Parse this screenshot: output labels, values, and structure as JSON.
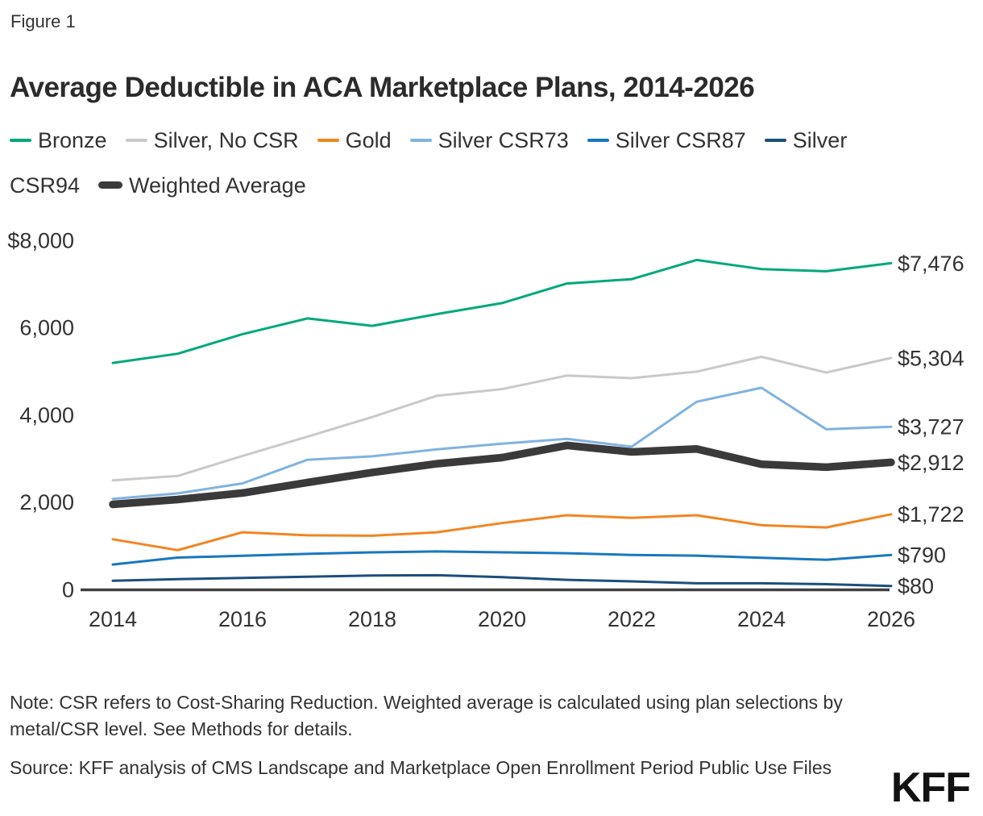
{
  "figure_label": "Figure 1",
  "title": "Average Deductible in ACA Marketplace Plans, 2014-2026",
  "legend": {
    "items": [
      "Bronze",
      "Silver, No CSR",
      "Gold",
      "Silver CSR73",
      "Silver CSR87",
      "Silver CSR94",
      "Weighted Average"
    ]
  },
  "chart_data": {
    "type": "line",
    "title": "Average Deductible in ACA Marketplace Plans, 2014-2026",
    "x": [
      2014,
      2015,
      2016,
      2017,
      2018,
      2019,
      2020,
      2021,
      2022,
      2023,
      2024,
      2025,
      2026
    ],
    "x_ticks": [
      2014,
      2016,
      2018,
      2020,
      2022,
      2024,
      2026
    ],
    "ylim": [
      0,
      8000
    ],
    "grid": false,
    "legend_position": "top",
    "y_ticks": [
      {
        "value": 8000,
        "label": "$8,000"
      },
      {
        "value": 6000,
        "label": "6,000"
      },
      {
        "value": 4000,
        "label": "4,000"
      },
      {
        "value": 2000,
        "label": "2,000"
      },
      {
        "value": 0,
        "label": "0"
      }
    ],
    "series": [
      {
        "name": "Silver, No CSR",
        "color": "#C9C9C9",
        "width": 3,
        "values": [
          2500,
          2600,
          3060,
          3500,
          3950,
          4440,
          4590,
          4900,
          4840,
          4990,
          5330,
          4970,
          5304
        ],
        "end_label": "$5,304"
      },
      {
        "name": "Bronze",
        "color": "#00A87C",
        "width": 3,
        "values": [
          5190,
          5400,
          5850,
          6210,
          6040,
          6310,
          6560,
          7010,
          7110,
          7550,
          7340,
          7290,
          7476
        ],
        "end_label": "$7,476"
      },
      {
        "name": "Silver CSR73",
        "color": "#7FB3E0",
        "width": 3,
        "values": [
          2075,
          2200,
          2430,
          2970,
          3050,
          3210,
          3340,
          3450,
          3270,
          4300,
          4620,
          3670,
          3727
        ],
        "end_label": "$3,727"
      },
      {
        "name": "Gold",
        "color": "#F28522",
        "width": 3,
        "values": [
          1150,
          900,
          1310,
          1240,
          1230,
          1310,
          1520,
          1700,
          1640,
          1700,
          1470,
          1420,
          1722
        ],
        "end_label": "$1,722"
      },
      {
        "name": "Silver CSR87",
        "color": "#1878BE",
        "width": 3,
        "values": [
          570,
          730,
          770,
          815,
          850,
          870,
          850,
          830,
          790,
          775,
          725,
          680,
          790
        ],
        "end_label": "$790"
      },
      {
        "name": "Silver CSR94",
        "color": "#1B4F7C",
        "width": 3,
        "values": [
          200,
          235,
          265,
          290,
          320,
          325,
          280,
          220,
          185,
          140,
          140,
          120,
          80
        ],
        "end_label": "$80"
      },
      {
        "name": "Weighted Average",
        "color": "#3A3A3A",
        "width": 9.5,
        "values": [
          1950,
          2060,
          2210,
          2450,
          2680,
          2880,
          3020,
          3300,
          3150,
          3220,
          2870,
          2800,
          2912
        ],
        "end_label": "$2,912"
      }
    ],
    "axis_color": "#404040"
  },
  "note": "Note: CSR refers to Cost-Sharing Reduction. Weighted average is calculated using plan selections by metal/CSR level. See Methods for details.",
  "source": "Source: KFF analysis of CMS Landscape and Marketplace Open Enrollment Period Public Use Files",
  "logo": "KFF"
}
